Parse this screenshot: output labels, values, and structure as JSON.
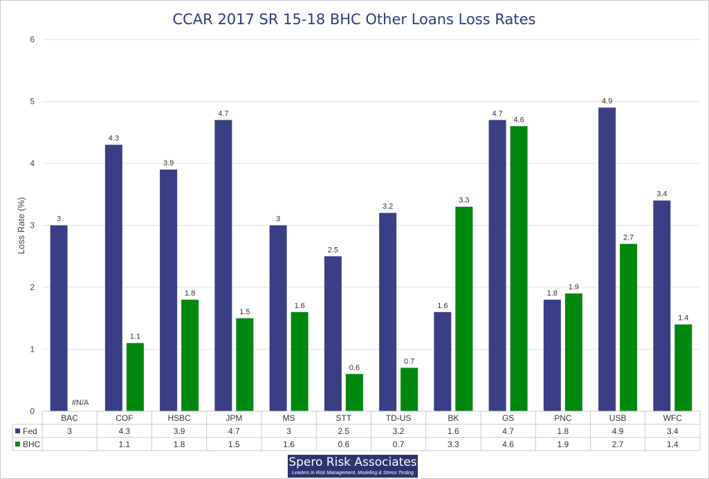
{
  "colors": {
    "fed": "#3a3e85",
    "bhc": "#00870f",
    "grid": "#e2e2e2",
    "title": "#2e3a7c"
  },
  "chart_data": {
    "type": "bar",
    "title": "CCAR 2017 SR 15-18 BHC Other Loans Loss Rates",
    "xlabel": "",
    "ylabel": "Loss Rate (%)",
    "ylim": [
      0,
      6
    ],
    "yticks": [
      "0",
      "1",
      "2",
      "3",
      "4",
      "5",
      "6"
    ],
    "grid": true,
    "legend": "data table",
    "categories": [
      "BAC",
      "COF",
      "HSBC",
      "JPM",
      "MS",
      "STT",
      "TD-US",
      "BK",
      "GS",
      "PNC",
      "USB",
      "WFC"
    ],
    "series": [
      {
        "name": "Fed",
        "values": [
          3,
          4.3,
          3.9,
          4.7,
          3,
          2.5,
          3.2,
          1.6,
          4.7,
          1.8,
          4.9,
          3.4
        ],
        "labels": [
          "3",
          "4.3",
          "3.9",
          "4.7",
          "3",
          "2.5",
          "3.2",
          "1.6",
          "4.7",
          "1.8",
          "4.9",
          "3.4"
        ],
        "table": [
          "3",
          "4.3",
          "3.9",
          "4.7",
          "3",
          "2.5",
          "3.2",
          "1.6",
          "4.7",
          "1.8",
          "4.9",
          "3.4"
        ]
      },
      {
        "name": "BHC",
        "values": [
          null,
          1.1,
          1.8,
          1.5,
          1.6,
          0.6,
          0.7,
          3.3,
          4.6,
          1.9,
          2.7,
          1.4
        ],
        "labels": [
          "#N/A",
          "1.1",
          "1.8",
          "1.5",
          "1.6",
          "0.6",
          "0.7",
          "3.3",
          "4.6",
          "1.9",
          "2.7",
          "1.4"
        ],
        "table": [
          "",
          "1.1",
          "1.8",
          "1.5",
          "1.6",
          "0.6",
          "0.7",
          "3.3",
          "4.6",
          "1.9",
          "2.7",
          "1.4"
        ]
      }
    ]
  },
  "logo": {
    "name": "Spero Risk Associates",
    "tagline": "Leaders in Risk Management, Modeling & Stress Testing"
  }
}
